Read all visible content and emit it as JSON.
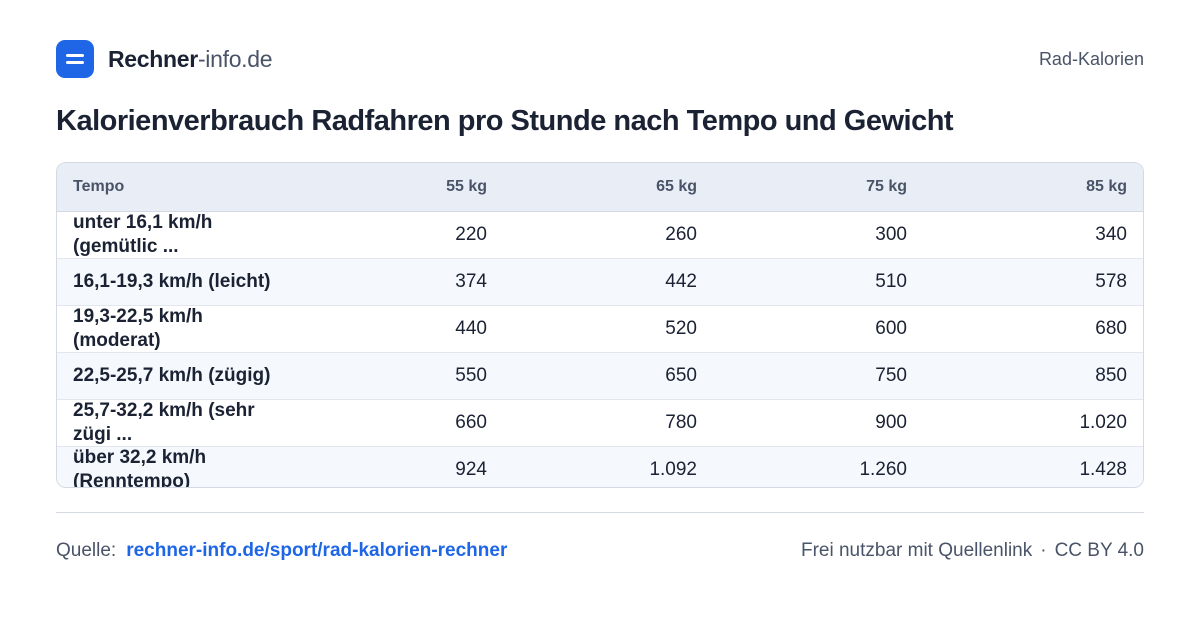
{
  "brand": {
    "name_strong": "Rechner",
    "name_light": "-info.de",
    "icon": "calculator-logo-icon",
    "accent_color": "#1e66e6"
  },
  "tagline": "Rad-Kalorien",
  "title": "Kalorienverbrauch Radfahren pro Stunde nach Tempo und Gewicht",
  "table": {
    "headers": [
      "Tempo",
      "55 kg",
      "65 kg",
      "75 kg",
      "85 kg"
    ],
    "rows": [
      {
        "tempo": "unter 16,1 km/h (gemütlic ...",
        "values": [
          "220",
          "260",
          "300",
          "340"
        ]
      },
      {
        "tempo": "16,1-19,3 km/h (leicht)",
        "values": [
          "374",
          "442",
          "510",
          "578"
        ]
      },
      {
        "tempo": "19,3-22,5 km/h (moderat)",
        "values": [
          "440",
          "520",
          "600",
          "680"
        ]
      },
      {
        "tempo": "22,5-25,7 km/h (zügig)",
        "values": [
          "550",
          "650",
          "750",
          "850"
        ]
      },
      {
        "tempo": "25,7-32,2 km/h (sehr zügi ...",
        "values": [
          "660",
          "780",
          "900",
          "1.020"
        ]
      },
      {
        "tempo": "über 32,2 km/h (Renntempo)",
        "values": [
          "924",
          "1.092",
          "1.260",
          "1.428"
        ]
      }
    ]
  },
  "footer": {
    "source_label": "Quelle:",
    "source_link": "rechner-info.de/sport/rad-kalorien-rechner",
    "license_text": "Frei nutzbar mit Quellenlink",
    "separator": "·",
    "license": "CC BY 4.0"
  }
}
